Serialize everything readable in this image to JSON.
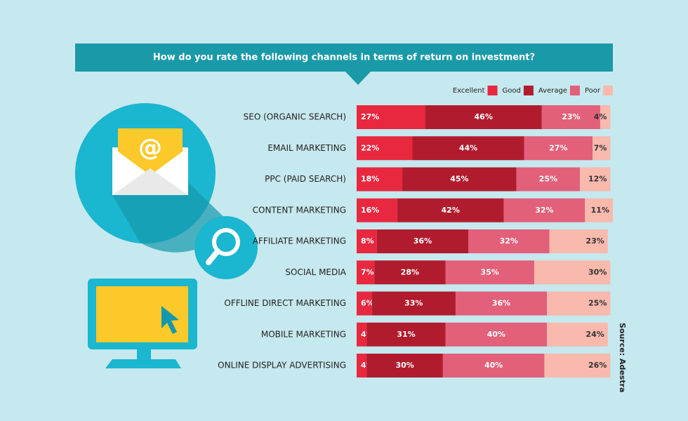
{
  "chart_data": {
    "type": "stacked-bar-horizontal",
    "title": "How do you rate the following channels in terms of return on investment?",
    "source": "Source: Adestra",
    "categories": [
      "SEO (ORGANIC SEARCH)",
      "EMAIL MARKETING",
      "PPC (PAID SEARCH)",
      "CONTENT MARKETING",
      "AFFILIATE MARKETING",
      "SOCIAL MEDIA",
      "OFFLINE DIRECT MARKETING",
      "MOBILE MARKETING",
      "ONLINE DISPLAY ADVERTISING"
    ],
    "series": [
      {
        "name": "Excellent",
        "color": "#e8283f",
        "values": [
          27,
          22,
          18,
          16,
          8,
          7,
          6,
          4,
          4
        ],
        "value_labels": [
          "27%",
          "22%",
          "18%",
          "16%",
          "8%",
          "7%",
          "6%",
          "4%",
          "4%"
        ]
      },
      {
        "name": "Good",
        "color": "#b01c2e",
        "values": [
          46,
          44,
          45,
          42,
          36,
          28,
          33,
          31,
          30
        ],
        "value_labels": [
          "46%",
          "44%",
          "45%",
          "42%",
          "36%",
          "28%",
          "33%",
          "31%",
          "30%"
        ]
      },
      {
        "name": "Average",
        "color": "#e2607a",
        "values": [
          23,
          27,
          25,
          32,
          32,
          35,
          36,
          40,
          40
        ],
        "value_labels": [
          "23%",
          "27%",
          "25%",
          "32%",
          "32%",
          "35%",
          "36%",
          "40%",
          "40%"
        ]
      },
      {
        "name": "Poor",
        "color": "#f9b9ad",
        "values": [
          4,
          7,
          12,
          11,
          23,
          30,
          25,
          24,
          26
        ],
        "value_labels": [
          "4%",
          "7%",
          "12%",
          "11%",
          "23%",
          "30%",
          "25%",
          "24%",
          "26%"
        ]
      }
    ],
    "legend": "top-right"
  }
}
